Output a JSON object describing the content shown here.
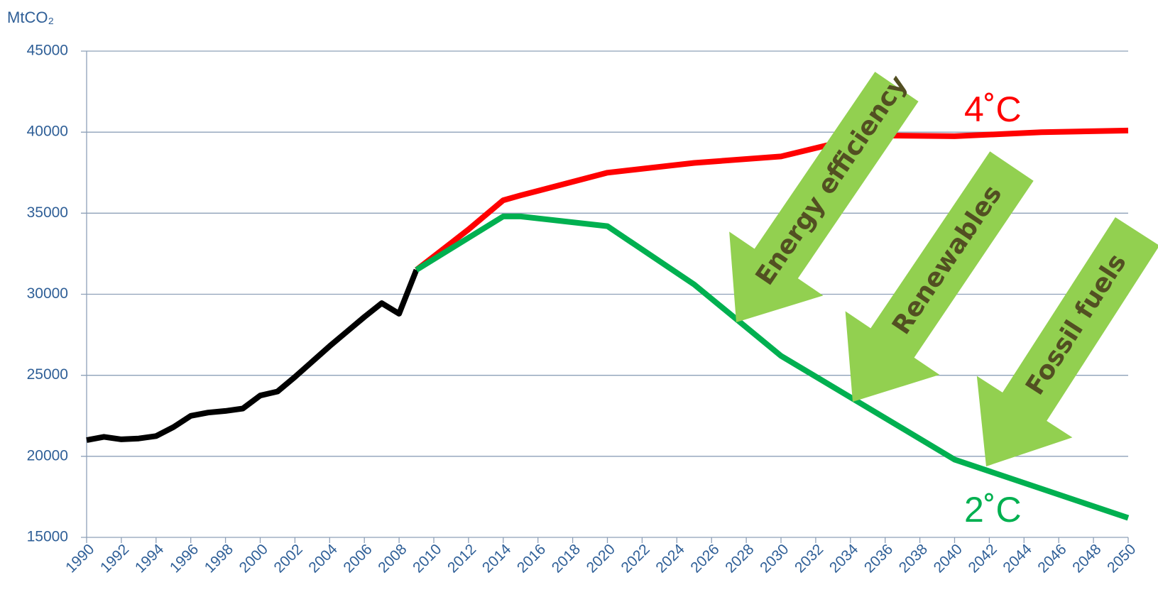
{
  "chart_data": {
    "type": "line",
    "y_label": "MtCO₂",
    "xlim": [
      1990,
      2050
    ],
    "xticks": [
      1990,
      1992,
      1994,
      1996,
      1998,
      2000,
      2002,
      2004,
      2006,
      2008,
      2010,
      2012,
      2014,
      2016,
      2018,
      2020,
      2022,
      2024,
      2026,
      2028,
      2030,
      2032,
      2034,
      2036,
      2038,
      2040,
      2042,
      2044,
      2046,
      2048,
      2050
    ],
    "ylim": [
      15000,
      45000
    ],
    "yticks": [
      15000,
      20000,
      25000,
      30000,
      35000,
      40000,
      45000
    ],
    "grid": true,
    "series": [
      {
        "color": "#000000",
        "x": [
          1990,
          1991,
          1992,
          1993,
          1994,
          1995,
          1996,
          1997,
          1998,
          1999,
          2000,
          2001,
          2002,
          2003,
          2004,
          2005,
          2006,
          2007,
          2008,
          2009
        ],
        "values": [
          21000,
          21200,
          21050,
          21100,
          21250,
          21800,
          22500,
          22700,
          22800,
          22950,
          23750,
          24000,
          24900,
          25850,
          26800,
          27700,
          28600,
          29450,
          28800,
          31500
        ]
      },
      {
        "name": "4˚C",
        "color": "#ff0000",
        "x": [
          2009,
          2012,
          2014,
          2015,
          2020,
          2025,
          2030,
          2035,
          2040,
          2045,
          2050
        ],
        "values": [
          31500,
          34000,
          35800,
          36100,
          37500,
          38100,
          38500,
          39800,
          39750,
          40000,
          40100
        ]
      },
      {
        "name": "2˚C",
        "color": "#00b050",
        "x": [
          2009,
          2014,
          2015,
          2020,
          2025,
          2030,
          2035,
          2040,
          2045,
          2050
        ],
        "values": [
          31500,
          34800,
          34800,
          34200,
          30600,
          26200,
          23000,
          19800,
          18000,
          16200
        ]
      }
    ],
    "annotations": [
      "Energy efficiency",
      "Renewables",
      "Fossil fuels"
    ]
  }
}
